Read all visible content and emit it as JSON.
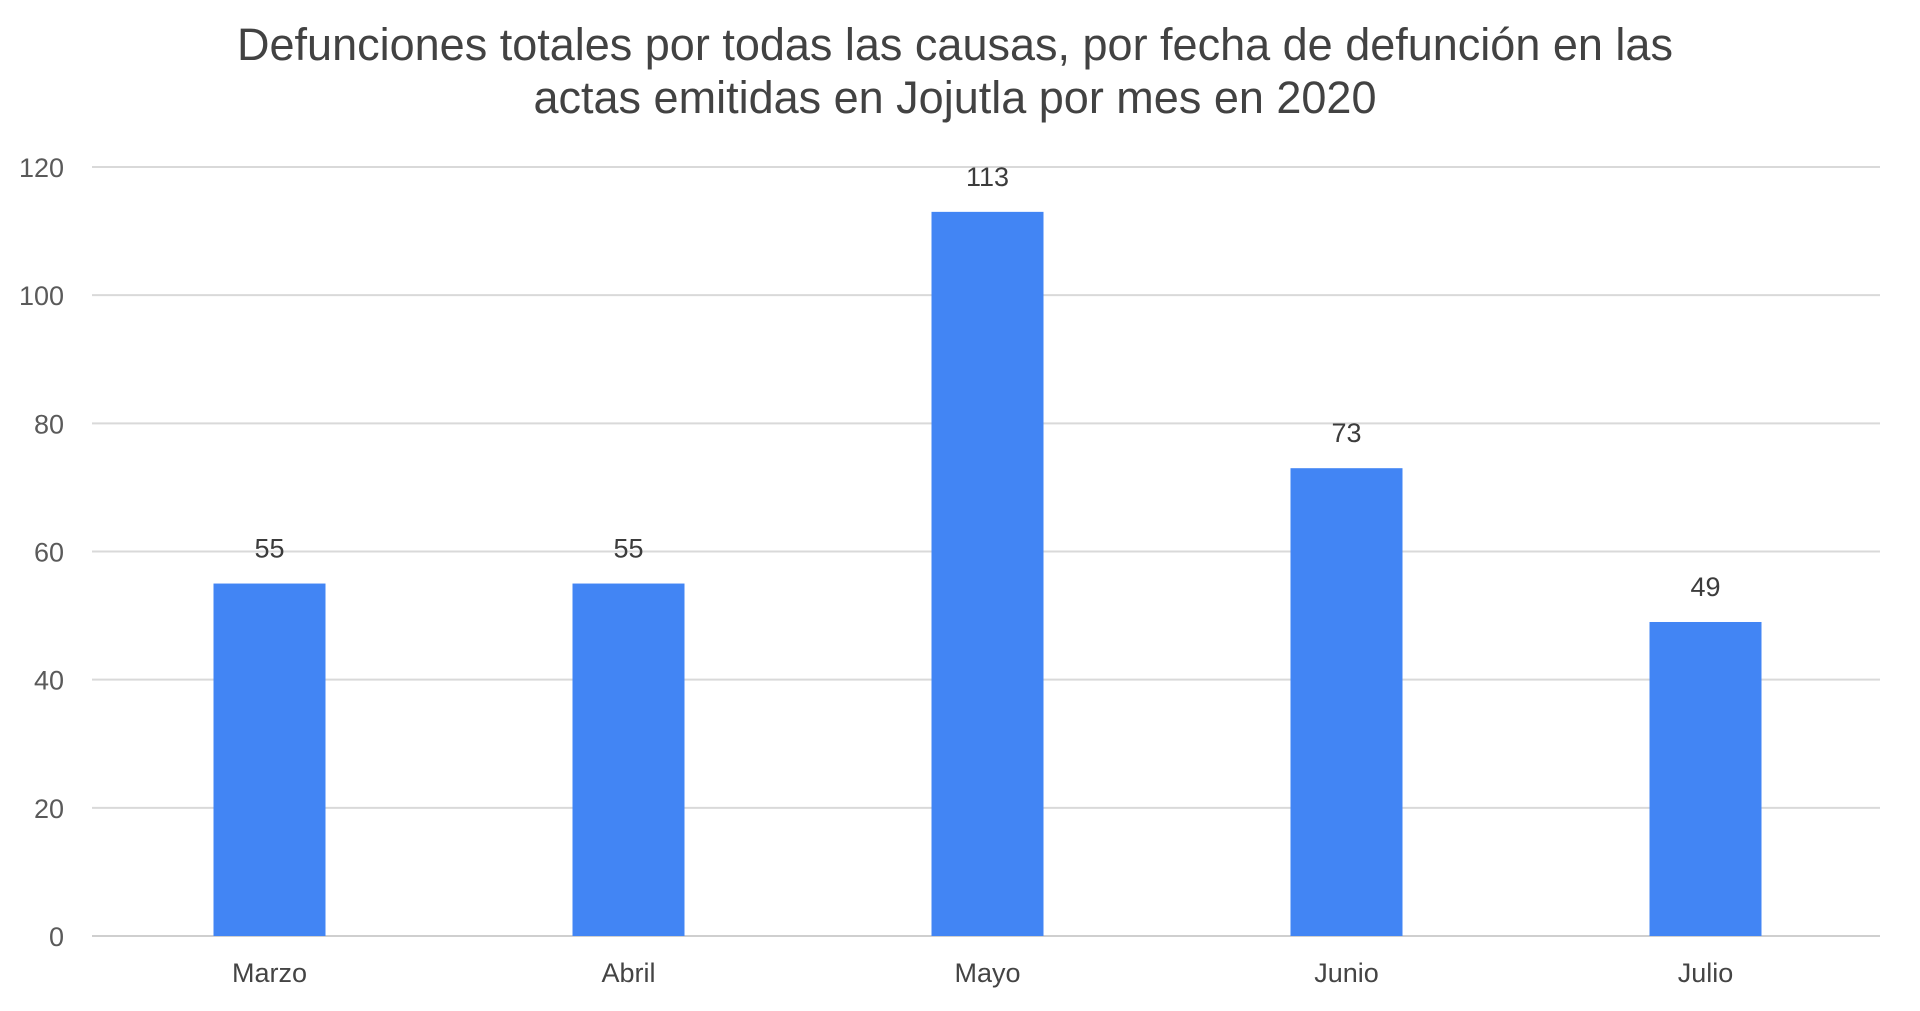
{
  "chart_data": {
    "type": "bar",
    "title": "Defunciones totales por todas las causas, por fecha de defunción en las actas emitidas en Jojutla por mes en 2020",
    "title_lines": [
      "Defunciones totales por todas las causas, por fecha de defunción en las",
      "actas emitidas en Jojutla por mes en 2020"
    ],
    "categories": [
      "Marzo",
      "Abril",
      "Mayo",
      "Junio",
      "Julio"
    ],
    "values": [
      55,
      55,
      113,
      73,
      49
    ],
    "data_labels": [
      "55",
      "55",
      "113",
      "73",
      "49"
    ],
    "xlabel": "",
    "ylabel": "",
    "ylim": [
      0,
      120
    ],
    "yticks": [
      0,
      20,
      40,
      60,
      80,
      100,
      120
    ],
    "grid": true,
    "legend": "none",
    "bar_color": "#4285f4"
  }
}
